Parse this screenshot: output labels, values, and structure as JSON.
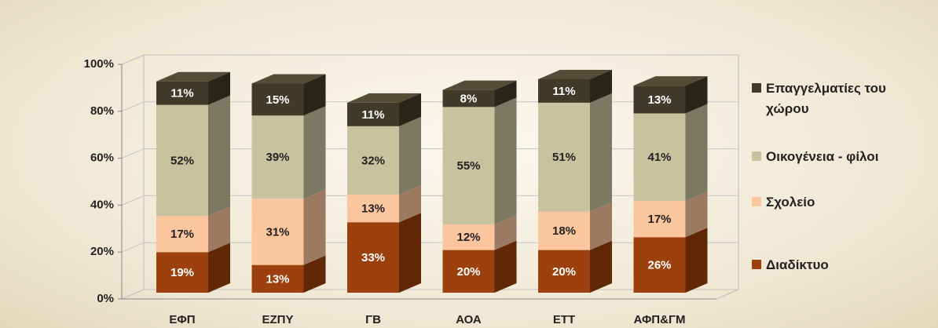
{
  "chart_data": {
    "type": "bar3d_stacked",
    "categories": [
      "ΕΦΠ",
      "ΕΖΠΥ",
      "ΓΒ",
      "ΑΟΑ",
      "ΕΤΤ",
      "ΑΦΠ&ΓΜ"
    ],
    "series": [
      {
        "name": "Διαδίκτυο",
        "color": "#9c400d",
        "values": [
          19,
          13,
          33,
          20,
          20,
          26
        ],
        "value_labels": [
          "19%",
          "13%",
          "33%",
          "20%",
          "20%",
          "26%"
        ]
      },
      {
        "name": "Σχολείο",
        "color": "#fbc59d",
        "values": [
          17,
          31,
          13,
          12,
          18,
          17
        ],
        "value_labels": [
          "17%",
          "31%",
          "13%",
          "12%",
          "18%",
          "17%"
        ]
      },
      {
        "name": "Οικογένεια - φίλοι",
        "color": "#c7c39e",
        "values": [
          52,
          39,
          32,
          55,
          51,
          41
        ],
        "value_labels": [
          "52%",
          "39%",
          "32%",
          "55%",
          "51%",
          "41%"
        ]
      },
      {
        "name": "Επαγγελματίες του χώρου",
        "color": "#403b29",
        "values": [
          11,
          15,
          11,
          8,
          11,
          13
        ],
        "value_labels": [
          "11%",
          "15%",
          "11%",
          "8%",
          "11%",
          "13%"
        ]
      }
    ],
    "ylim": [
      0,
      100
    ],
    "yticks": [
      {
        "value": 0,
        "label": "0%"
      },
      {
        "value": 20,
        "label": "20%"
      },
      {
        "value": 40,
        "label": "40%"
      },
      {
        "value": 60,
        "label": "60%"
      },
      {
        "value": 80,
        "label": "80%"
      },
      {
        "value": 100,
        "label": "100%"
      }
    ],
    "grid": true,
    "legend": "right"
  }
}
